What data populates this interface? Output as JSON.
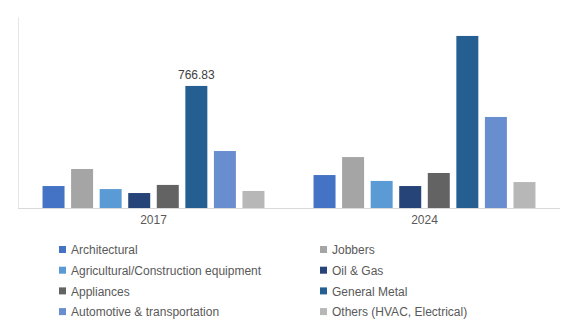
{
  "chart_data": {
    "type": "bar",
    "categories": [
      "2017",
      "2024"
    ],
    "series": [
      {
        "name": "Architectural",
        "color": "#4472c4",
        "values": [
          138,
          207
        ]
      },
      {
        "name": "Jobbers",
        "color": "#a5a5a5",
        "values": [
          245,
          320
        ]
      },
      {
        "name": "Agricultural/Construction equipment",
        "color": "#5b9bd5",
        "values": [
          119,
          170
        ]
      },
      {
        "name": "Oil & Gas",
        "color": "#264478",
        "values": [
          94,
          138
        ]
      },
      {
        "name": "Appliances",
        "color": "#636363",
        "values": [
          145,
          220
        ]
      },
      {
        "name": "General Metal",
        "color": "#255e91",
        "values": [
          766.83,
          1081
        ],
        "value_labels": [
          "766.83",
          null
        ]
      },
      {
        "name": "Automotive & transportation",
        "color": "#698ed0",
        "values": [
          358,
          572
        ]
      },
      {
        "name": "Others (HVAC, Electrical)",
        "color": "#b7b7b7",
        "values": [
          107,
          163
        ]
      }
    ],
    "ylim": [
      0,
      1200
    ],
    "yticks": [],
    "tick_labels": "x",
    "grid": false,
    "legend": "bottom"
  }
}
